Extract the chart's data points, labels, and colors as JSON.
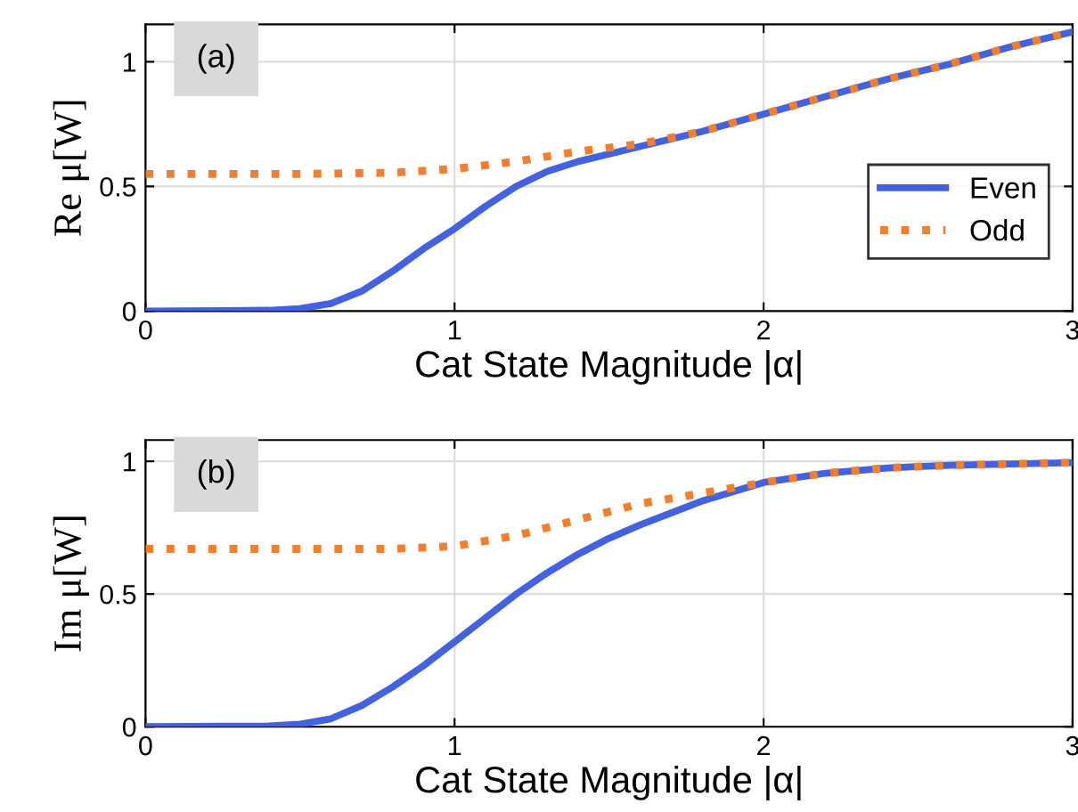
{
  "chart_data": [
    {
      "type": "line",
      "xlabel": "Cat State Magnitude |α|",
      "ylabel": "Re μ[W]",
      "annotations": [
        "(a)"
      ],
      "xlim": [
        0,
        3
      ],
      "ylim": [
        0,
        1.15
      ],
      "xticks": [
        0,
        1,
        2,
        3
      ],
      "yticks": [
        0,
        0.5,
        1
      ],
      "grid": true,
      "legend": "bottom right",
      "series": [
        {
          "name": "Even",
          "color": "#4262e0",
          "line_style": "solid",
          "x": [
            0,
            0.4,
            0.5,
            0.6,
            0.7,
            0.8,
            0.9,
            1.0,
            1.1,
            1.2,
            1.3,
            1.4,
            1.5,
            1.6,
            1.8,
            2.0,
            2.2,
            2.4,
            2.6,
            2.8,
            3.0
          ],
          "values": [
            0,
            0.003,
            0.01,
            0.03,
            0.08,
            0.16,
            0.25,
            0.33,
            0.42,
            0.5,
            0.56,
            0.6,
            0.63,
            0.66,
            0.72,
            0.79,
            0.86,
            0.93,
            0.99,
            1.06,
            1.12
          ]
        },
        {
          "name": "Odd",
          "color": "#f27f2e",
          "line_style": "dotted",
          "x": [
            0,
            0.5,
            0.8,
            1.0,
            1.2,
            1.4,
            1.6,
            1.8,
            2.0,
            2.2,
            2.4,
            2.6,
            2.8,
            3.0
          ],
          "values": [
            0.55,
            0.55,
            0.555,
            0.57,
            0.6,
            0.64,
            0.67,
            0.72,
            0.79,
            0.86,
            0.93,
            0.99,
            1.06,
            1.12
          ]
        }
      ]
    },
    {
      "type": "line",
      "xlabel": "Cat State Magnitude |α|",
      "ylabel": "Im μ[W]",
      "annotations": [
        "(b)"
      ],
      "xlim": [
        0,
        3
      ],
      "ylim": [
        0,
        1.08
      ],
      "xticks": [
        0,
        1,
        2,
        3
      ],
      "yticks": [
        0,
        0.5,
        1
      ],
      "grid": true,
      "series": [
        {
          "color": "#4262e0",
          "line_style": "solid",
          "x": [
            0,
            0.4,
            0.5,
            0.6,
            0.7,
            0.8,
            0.9,
            1.0,
            1.1,
            1.2,
            1.3,
            1.4,
            1.5,
            1.6,
            1.8,
            2.0,
            2.2,
            2.4,
            2.6,
            2.8,
            3.0
          ],
          "values": [
            0,
            0.003,
            0.01,
            0.03,
            0.08,
            0.15,
            0.23,
            0.32,
            0.41,
            0.5,
            0.58,
            0.65,
            0.71,
            0.76,
            0.85,
            0.92,
            0.955,
            0.975,
            0.985,
            0.99,
            0.995
          ]
        },
        {
          "color": "#f27f2e",
          "line_style": "dotted",
          "x": [
            0,
            0.5,
            0.8,
            1.0,
            1.1,
            1.2,
            1.3,
            1.4,
            1.5,
            1.6,
            1.8,
            2.0,
            2.2,
            2.4,
            2.6,
            2.8,
            3.0
          ],
          "values": [
            0.67,
            0.67,
            0.67,
            0.68,
            0.7,
            0.72,
            0.75,
            0.78,
            0.81,
            0.84,
            0.88,
            0.92,
            0.955,
            0.975,
            0.985,
            0.99,
            0.995
          ]
        }
      ]
    }
  ]
}
